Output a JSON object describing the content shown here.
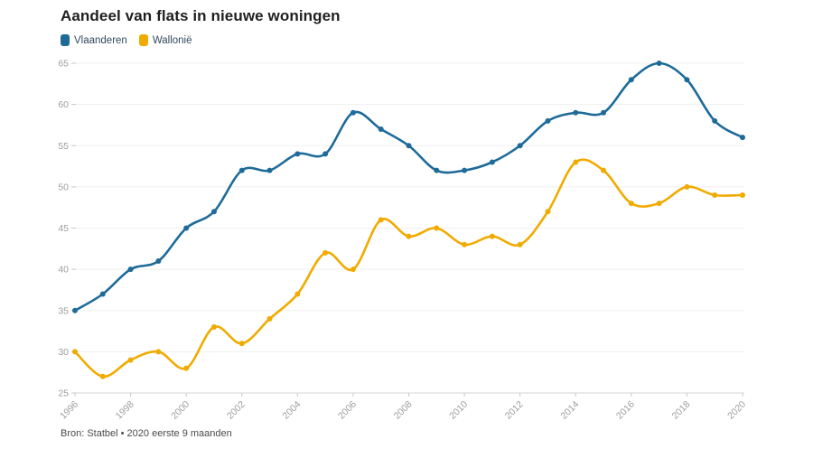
{
  "chart": {
    "title": "Aandeel van flats in nieuwe woningen",
    "source": "Bron: Statbel • 2020 eerste 9 maanden"
  },
  "legend": {
    "items": [
      {
        "label": "Vlaanderen",
        "color": "#1e6b99"
      },
      {
        "label": "Wallonië",
        "color": "#f0ab00"
      }
    ]
  },
  "chart_data": {
    "type": "line",
    "title": "Aandeel van flats in nieuwe woningen",
    "xlabel": "",
    "ylabel": "",
    "grid": "horizontal",
    "legend_position": "top-left",
    "marker": "dot",
    "curve": "smooth",
    "ylim": [
      25,
      65
    ],
    "y_ticks": [
      25,
      30,
      35,
      40,
      45,
      50,
      55,
      60,
      65
    ],
    "x": [
      1996,
      1997,
      1998,
      1999,
      2000,
      2001,
      2002,
      2003,
      2004,
      2005,
      2006,
      2007,
      2008,
      2009,
      2010,
      2011,
      2012,
      2013,
      2014,
      2015,
      2016,
      2017,
      2018,
      2019,
      2020
    ],
    "x_tick_labels": [
      "1996",
      "1998",
      "2000",
      "2002",
      "2004",
      "2006",
      "2008",
      "2010",
      "2012",
      "2014",
      "2016",
      "2018",
      "2020"
    ],
    "series": [
      {
        "name": "Vlaanderen",
        "color": "#1e6b99",
        "values": [
          35,
          37,
          40,
          41,
          45,
          47,
          52,
          52,
          54,
          54,
          59,
          57,
          55,
          52,
          52,
          53,
          55,
          58,
          59,
          59,
          63,
          65,
          63,
          58,
          56
        ]
      },
      {
        "name": "Wallonië",
        "color": "#f0ab00",
        "values": [
          30,
          27,
          29,
          30,
          28,
          33,
          31,
          34,
          37,
          42,
          40,
          46,
          44,
          45,
          43,
          44,
          43,
          47,
          53,
          52,
          48,
          48,
          50,
          49,
          49
        ]
      }
    ],
    "axis_colors": {
      "grid": "#efefef",
      "axis_line": "#d6d6d6",
      "tick": "#c9c9c9",
      "label": "#9d9d9d"
    }
  }
}
